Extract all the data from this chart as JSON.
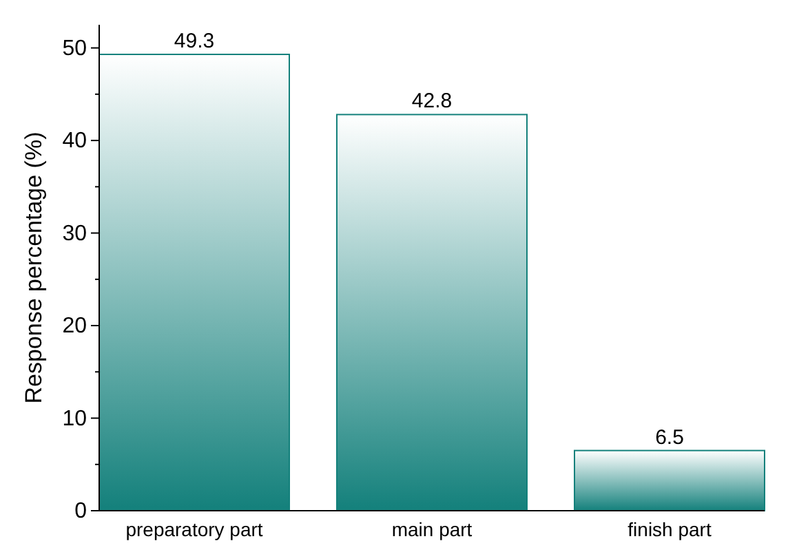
{
  "chart_data": {
    "type": "bar",
    "ylabel": "Response percentage (%)",
    "categories": [
      "preparatory part",
      "main part",
      "finish part"
    ],
    "values": [
      49.3,
      42.8,
      6.5
    ],
    "color": "#13807b",
    "ylim": [
      0,
      52.5
    ],
    "yticks": [
      0,
      {
        "value": 5,
        "label": null
      },
      10,
      {
        "value": 15,
        "label": null
      },
      20,
      {
        "value": 25,
        "label": null
      },
      30,
      {
        "value": 35,
        "label": null
      },
      40,
      {
        "value": 45,
        "label": null
      },
      50
    ],
    "data_labels": true,
    "grid": false
  }
}
